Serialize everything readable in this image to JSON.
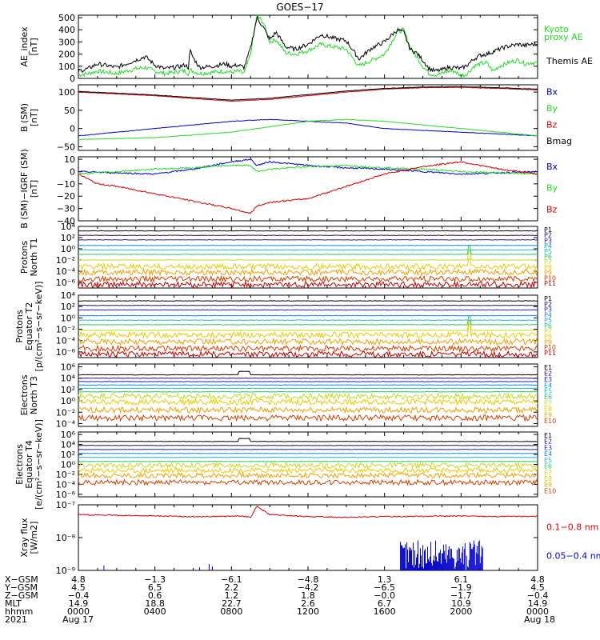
{
  "title": "GOES−17",
  "colors": {
    "black": "#000000",
    "red": "#d40000",
    "green": "#22dd22",
    "blue": "#0000cc",
    "p_levels": [
      "#000000",
      "#2a0a6e",
      "#1a22bb",
      "#1188dd",
      "#22b8c8",
      "#22cc66",
      "#c8d820",
      "#e8cc00",
      "#f0a000",
      "#d04000",
      "#c00000"
    ]
  },
  "chart_data": [
    {
      "type": "line",
      "panel": "ae",
      "ylabel": [
        "AE_index",
        "[nT]"
      ],
      "yticks": [
        "500",
        "400",
        "300",
        "200",
        "100",
        "0"
      ],
      "ylim": [
        0,
        520
      ],
      "series": [
        {
          "name": "Kyoto proxy AE",
          "color": "#22dd22",
          "legend": [
            "Kyoto",
            "proxy AE"
          ],
          "x": [
            0,
            30,
            60,
            120,
            180,
            210,
            240,
            270,
            300,
            320,
            335,
            345,
            350,
            360,
            380,
            420,
            460,
            480,
            500,
            520,
            540,
            560,
            580,
            600,
            620,
            650,
            680,
            720,
            760,
            800,
            840,
            880,
            920,
            960,
            1000,
            1020,
            1040,
            1060,
            1080,
            1100,
            1120,
            1140,
            1160,
            1180,
            1200,
            1220,
            1240,
            1260,
            1280,
            1300,
            1320,
            1340,
            1360,
            1380,
            1400,
            1420,
            1440
          ],
          "y": [
            30,
            40,
            60,
            40,
            80,
            90,
            60,
            40,
            50,
            60,
            60,
            40,
            70,
            60,
            40,
            50,
            60,
            50,
            60,
            40,
            200,
            520,
            460,
            300,
            320,
            210,
            200,
            230,
            280,
            260,
            240,
            100,
            150,
            200,
            380,
            400,
            260,
            180,
            100,
            40,
            30,
            40,
            60,
            60,
            20,
            40,
            100,
            120,
            130,
            60,
            100,
            120,
            140,
            150,
            120,
            130,
            130
          ]
        },
        {
          "name": "Themis AE",
          "color": "#000000",
          "legend": [
            "Themis AE"
          ],
          "x": [
            0,
            30,
            60,
            120,
            180,
            210,
            240,
            270,
            300,
            320,
            335,
            345,
            350,
            360,
            380,
            420,
            460,
            480,
            500,
            520,
            540,
            560,
            580,
            600,
            620,
            650,
            680,
            720,
            760,
            800,
            840,
            880,
            920,
            960,
            1000,
            1020,
            1040,
            1060,
            1080,
            1100,
            1120,
            1140,
            1160,
            1180,
            1200,
            1220,
            1240,
            1260,
            1280,
            1300,
            1320,
            1340,
            1360,
            1380,
            1400,
            1420,
            1440
          ],
          "y": [
            60,
            80,
            120,
            90,
            150,
            180,
            110,
            80,
            90,
            100,
            110,
            90,
            230,
            170,
            90,
            100,
            120,
            100,
            110,
            90,
            250,
            500,
            420,
            320,
            380,
            260,
            240,
            280,
            360,
            330,
            310,
            160,
            250,
            300,
            400,
            380,
            240,
            210,
            150,
            80,
            60,
            70,
            90,
            90,
            80,
            110,
            160,
            190,
            200,
            220,
            240,
            260,
            270,
            280,
            270,
            280,
            280
          ]
        }
      ]
    },
    {
      "type": "line",
      "panel": "bsm",
      "ylabel": [
        "B (SM)",
        "[nT]"
      ],
      "yticks": [
        "100",
        "50",
        "0",
        "−50"
      ],
      "ylim": [
        -60,
        120
      ],
      "series": [
        {
          "name": "Bx",
          "color": "#0000cc",
          "x": [
            0,
            240,
            480,
            600,
            720,
            840,
            960,
            1080,
            1200,
            1320,
            1440
          ],
          "y": [
            -20,
            0,
            20,
            25,
            20,
            15,
            0,
            -5,
            -10,
            -15,
            -20
          ]
        },
        {
          "name": "By",
          "color": "#22dd22",
          "x": [
            0,
            240,
            480,
            600,
            720,
            840,
            960,
            1080,
            1200,
            1320,
            1440
          ],
          "y": [
            -30,
            -25,
            -10,
            5,
            20,
            25,
            20,
            10,
            0,
            -10,
            -20
          ]
        },
        {
          "name": "Bz",
          "color": "#d40000",
          "x": [
            0,
            240,
            480,
            600,
            720,
            840,
            960,
            1080,
            1200,
            1320,
            1440
          ],
          "y": [
            100,
            90,
            75,
            80,
            90,
            100,
            108,
            112,
            113,
            110,
            106
          ]
        },
        {
          "name": "Bmag",
          "color": "#000000",
          "x": [
            0,
            240,
            480,
            600,
            720,
            840,
            960,
            1080,
            1200,
            1320,
            1440
          ],
          "y": [
            102,
            92,
            78,
            83,
            93,
            103,
            110,
            114,
            115,
            112,
            108
          ]
        }
      ]
    },
    {
      "type": "line",
      "panel": "bres",
      "ylabel": [
        "B (SM)−IGRF (SM)",
        "[nT]"
      ],
      "yticks": [
        "10",
        "0",
        "−10",
        "−20",
        "−30",
        "−40"
      ],
      "ylim": [
        -40,
        12
      ],
      "series": [
        {
          "name": "Bx",
          "color": "#0000cc",
          "x": [
            0,
            120,
            240,
            360,
            480,
            540,
            560,
            600,
            720,
            840,
            960,
            1080,
            1200,
            1320,
            1440
          ],
          "y": [
            0,
            -1,
            -2,
            2,
            8,
            10,
            5,
            8,
            5,
            3,
            2,
            0,
            -2,
            -1,
            0
          ]
        },
        {
          "name": "By",
          "color": "#22dd22",
          "x": [
            0,
            120,
            240,
            360,
            480,
            540,
            560,
            600,
            720,
            840,
            960,
            1080,
            1200,
            1320,
            1440
          ],
          "y": [
            -2,
            0,
            2,
            3,
            5,
            5,
            0,
            2,
            4,
            5,
            3,
            2,
            0,
            -1,
            -2
          ]
        },
        {
          "name": "Bz",
          "color": "#d40000",
          "x": [
            0,
            60,
            120,
            240,
            360,
            480,
            540,
            560,
            600,
            720,
            840,
            960,
            1080,
            1200,
            1320,
            1440
          ],
          "y": [
            -2,
            -10,
            -12,
            -18,
            -24,
            -30,
            -34,
            -28,
            -25,
            -22,
            -12,
            -2,
            4,
            8,
            2,
            -2
          ]
        }
      ]
    },
    {
      "type": "line",
      "panel": "p1",
      "log": true,
      "ylabel": [
        "Protons",
        "North T1"
      ],
      "yticks": [
        "10⁴",
        "10²",
        "10⁰",
        "10⁻²",
        "10⁻⁴",
        "10⁻⁶"
      ],
      "ylim": [
        -7,
        4
      ],
      "channels": [
        "P1",
        "P2",
        "P3",
        "P4",
        "P5",
        "P6",
        "P7",
        "P8",
        "P9",
        "P10",
        "P11"
      ],
      "levels": [
        3.2,
        2.4,
        1.6,
        0.6,
        -0.2,
        -1.0,
        -2.0,
        -3.2,
        -4.2,
        -5.4,
        -6.4
      ]
    },
    {
      "type": "line",
      "panel": "p2",
      "log": true,
      "ylabel": [
        "Protons",
        "Equator T2",
        "[p/(cm²−s−sr−keV)]"
      ],
      "yticks": [
        "10⁴",
        "10²",
        "10⁰",
        "10⁻²",
        "10⁻⁴",
        "10⁻⁶"
      ],
      "ylim": [
        -7,
        4
      ],
      "channels": [
        "P1",
        "P2",
        "P3",
        "P4",
        "P5",
        "P6",
        "P7",
        "P8",
        "P9",
        "P10",
        "P11"
      ],
      "levels": [
        3.0,
        2.2,
        1.4,
        0.4,
        -0.4,
        -1.2,
        -2.2,
        -3.0,
        -4.2,
        -5.4,
        -6.4
      ]
    },
    {
      "type": "line",
      "panel": "e1",
      "log": true,
      "ylabel": [
        "Electrons",
        "North T3"
      ],
      "yticks": [
        "10⁶",
        "10⁴",
        "10²",
        "10⁰",
        "10⁻²",
        "10⁻⁴"
      ],
      "ylim": [
        -4.5,
        6.5
      ],
      "channels": [
        "E1",
        "E2",
        "E3",
        "E4",
        "E5",
        "E6",
        "E7",
        "E8",
        "E9",
        "E10"
      ],
      "levels": [
        4.6,
        4.0,
        3.4,
        2.8,
        2.2,
        1.6,
        0.8,
        -0.2,
        -1.6,
        -3.0
      ]
    },
    {
      "type": "line",
      "panel": "e2",
      "log": true,
      "ylabel": [
        "Electrons",
        "Equator T4",
        "[e/(cm²−s−sr−keV)]"
      ],
      "yticks": [
        "10⁶",
        "10⁴",
        "10²",
        "10⁰",
        "10⁻²",
        "10⁻⁴",
        "10⁻⁶"
      ],
      "ylim": [
        -6.5,
        6.5
      ],
      "channels": [
        "E1",
        "E2",
        "E3",
        "E4",
        "E5",
        "E6",
        "E7",
        "E8",
        "E9",
        "E10"
      ],
      "levels": [
        4.6,
        3.8,
        3.0,
        2.2,
        1.4,
        0.6,
        -0.2,
        -1.2,
        -2.2,
        -3.6
      ]
    },
    {
      "type": "line",
      "panel": "xray",
      "log": true,
      "ylabel": [
        "Xray flux",
        "[W/m2]"
      ],
      "yticks": [
        "10⁻⁷",
        "10⁻⁸",
        "10⁻⁹"
      ],
      "ylim": [
        -9,
        -7
      ],
      "series": [
        {
          "name": "0.1−0.8 nm",
          "color": "#d40000",
          "x": [
            0,
            120,
            240,
            360,
            480,
            510,
            540,
            560,
            600,
            720,
            840,
            960,
            1080,
            1200,
            1320,
            1440
          ],
          "y": [
            -7.3,
            -7.32,
            -7.34,
            -7.36,
            -7.35,
            -7.34,
            -7.38,
            -7.05,
            -7.3,
            -7.36,
            -7.38,
            -7.36,
            -7.35,
            -7.34,
            -7.36,
            -7.35
          ]
        },
        {
          "name": "0.05−0.4 nm",
          "color": "#0000cc"
        }
      ]
    }
  ],
  "side_labels": {
    "bsm": [
      "Bx",
      "By",
      "Bz",
      "Bmag"
    ],
    "bres": [
      "Bx",
      "By",
      "Bz"
    ],
    "xray": [
      "0.1−0.8 nm",
      "0.05−0.4 nm"
    ]
  },
  "x_axis": {
    "row_labels": [
      "X−GSM",
      "Y−GSM",
      "Z−GSM",
      "MLT",
      "hhmm",
      "2021"
    ],
    "columns": [
      [
        "4.8",
        "4.5",
        "−0.4",
        "14.9",
        "0000",
        "Aug 17"
      ],
      [
        "−1.3",
        "6.5",
        "0.6",
        "18.8",
        "0400",
        ""
      ],
      [
        "−6.1",
        "2.2",
        "1.2",
        "22.7",
        "0800",
        ""
      ],
      [
        "−4.8",
        "−4.2",
        "1.8",
        "2.6",
        "1200",
        ""
      ],
      [
        "1.3",
        "−6.5",
        "−0.0",
        "6.7",
        "1600",
        ""
      ],
      [
        "6.1",
        "−1.9",
        "−1.7",
        "10.9",
        "2000",
        ""
      ],
      [
        "4.8",
        "4.5",
        "−0.4",
        "14.9",
        "0000",
        "Aug 18"
      ]
    ]
  }
}
